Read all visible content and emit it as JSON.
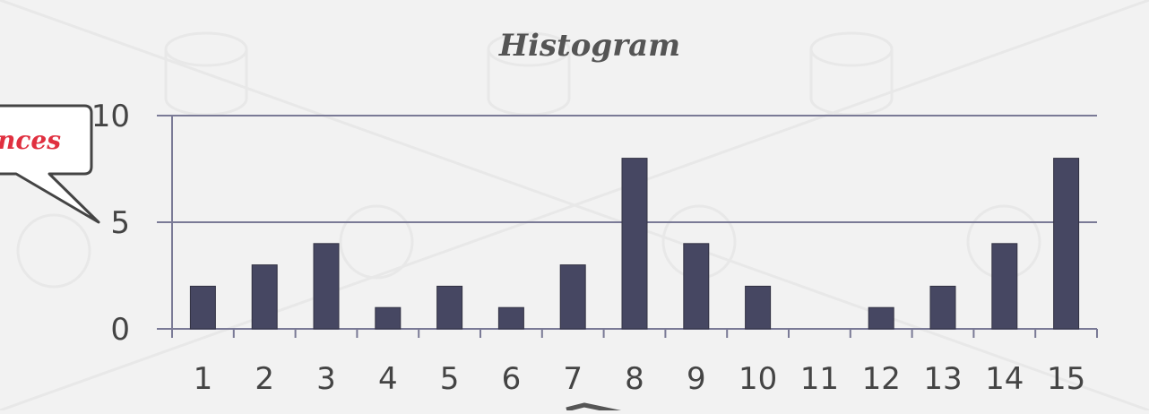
{
  "chart_data": {
    "type": "bar",
    "title": "Histogram",
    "categories": [
      "1",
      "2",
      "3",
      "4",
      "5",
      "6",
      "7",
      "8",
      "9",
      "10",
      "11",
      "12",
      "13",
      "14",
      "15"
    ],
    "values": [
      2,
      3,
      4,
      1,
      2,
      1,
      3,
      8,
      4,
      2,
      0,
      1,
      2,
      4,
      8
    ],
    "y_ticks": [
      "0",
      "5",
      "10"
    ],
    "ylim": [
      0,
      10
    ],
    "grid": true,
    "colors": {
      "bar": "#464762",
      "grid": "#7a7a96",
      "axis": "#7a7a96",
      "background": "#f2f2f2"
    }
  },
  "callout": {
    "text": "nces"
  }
}
